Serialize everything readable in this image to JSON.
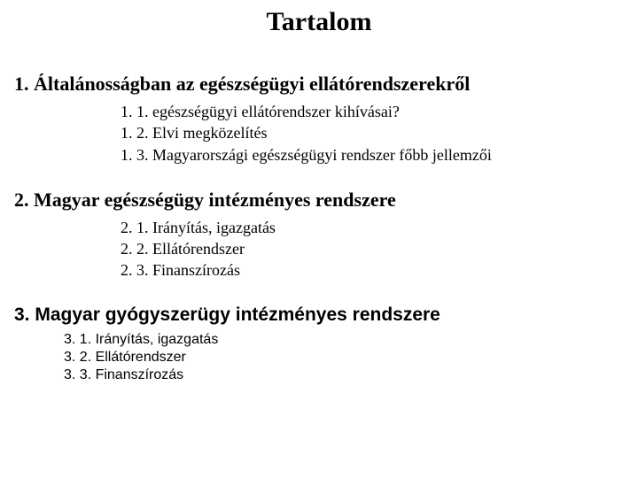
{
  "title": "Tartalom",
  "sections": [
    {
      "heading": "1. Általánosságban az egészségügyi ellátórendszerekről",
      "items": [
        "1. 1. egészségügyi ellátórendszer kihívásai?",
        "1. 2. Elvi megközelítés",
        "1. 3. Magyarországi egészségügyi rendszer főbb jellemzői"
      ]
    },
    {
      "heading": "2. Magyar egészségügy intézményes rendszere",
      "items": [
        "2. 1. Irányítás, igazgatás",
        "2. 2. Ellátórendszer",
        "2. 3. Finanszírozás"
      ]
    },
    {
      "heading": "3. Magyar gyógyszerügy intézményes rendszere",
      "items": [
        "3. 1. Irányítás, igazgatás",
        "3. 2. Ellátórendszer",
        "3. 3. Finanszírozás"
      ]
    }
  ]
}
